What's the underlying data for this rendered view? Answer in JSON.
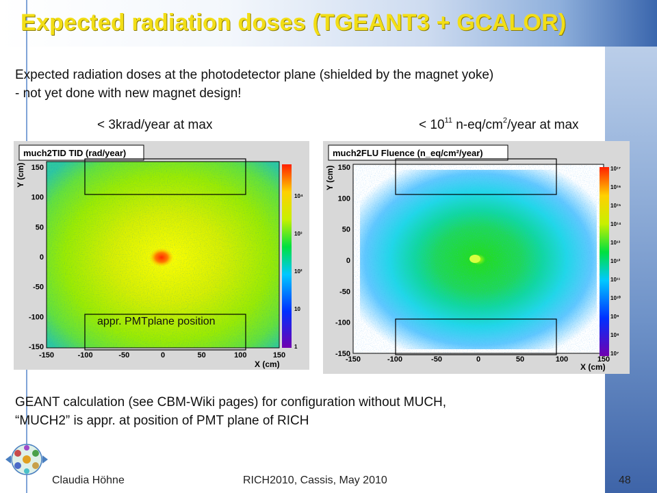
{
  "slide": {
    "title": "Expected radiation doses (TGEANT3 + GCALOR)",
    "intro_line1": "Expected radiation doses at the photodetector plane (shielded by the magnet yoke)",
    "intro_line2": "- not yet done with new magnet design!",
    "left_plot_label": "< 3krad/year at max",
    "right_plot_label": {
      "prefix": "< 10",
      "exponent": "11",
      "middle": " n-eq/cm",
      "unit_exponent": "2",
      "suffix": "/year at max"
    },
    "callout": "appr. PMTplane position",
    "note_line1": "GEANT calculation (see CBM-Wiki pages) for configuration without MUCH,",
    "note_line2": "“MUCH2” is appr. at position of PMT plane of RICH"
  },
  "left_plot": {
    "header": "much2TID  TID  (rad/year)",
    "xlabel": "X (cm)",
    "ylabel": "Y (cm)",
    "x_ticks": [
      "-150",
      "-100",
      "-50",
      "0",
      "50",
      "100",
      "150"
    ],
    "y_ticks": [
      "150",
      "100",
      "50",
      "0",
      "-50",
      "-100",
      "-150"
    ],
    "palette_labels": [
      "10⁴",
      "10³",
      "10²",
      "10",
      "1"
    ]
  },
  "right_plot": {
    "header": "much2FLU  Fluence  (n_eq/cm²/year)",
    "xlabel": "X (cm)",
    "ylabel": "Y (cm)",
    "x_ticks": [
      "-150",
      "-100",
      "-50",
      "0",
      "50",
      "100",
      "150"
    ],
    "y_ticks": [
      "150",
      "100",
      "50",
      "0",
      "-50",
      "-100",
      "-150"
    ],
    "palette_labels": [
      "10¹⁷",
      "10¹⁶",
      "10¹⁵",
      "10¹⁴",
      "10¹³",
      "10¹²",
      "10¹¹",
      "10¹⁰",
      "10⁹",
      "10⁸",
      "10⁷"
    ]
  },
  "footer": {
    "author": "Claudia Höhne",
    "event": "RICH2010, Cassis, May 2010",
    "page": "48"
  },
  "colors": {
    "title": "#f2de17",
    "accent_blue": "#3a66ad",
    "tid_hot": "#ff2a00",
    "fluence_center": "#22dd22"
  }
}
